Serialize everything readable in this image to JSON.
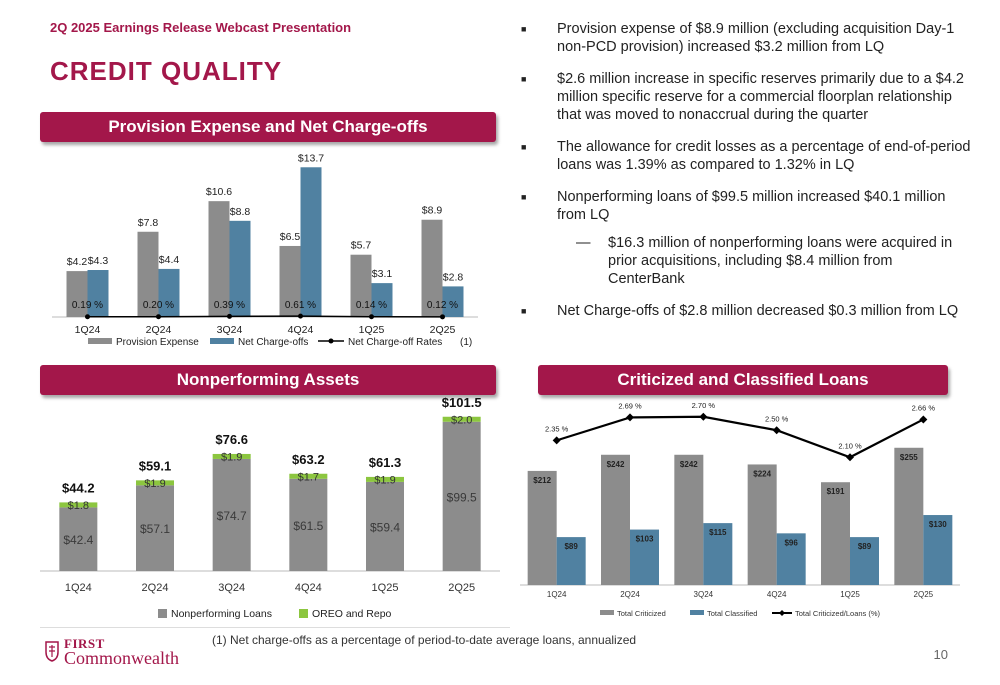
{
  "header": {
    "subtitle": "2Q 2025 Earnings Release Webcast Presentation",
    "title": "CREDIT QUALITY"
  },
  "banners": {
    "provision": "Provision Expense and Net Charge-offs",
    "npa": "Nonperforming Assets",
    "criticized": "Criticized and Classified Loans"
  },
  "bullets": [
    {
      "text": "Provision expense of $8.9 million (excluding acquisition Day-1 non-PCD provision) increased $3.2 million from LQ"
    },
    {
      "text": "$2.6 million increase in specific reserves primarily due to a $4.2 million specific reserve for a commercial floorplan relationship that was moved to nonaccrual during the quarter"
    },
    {
      "text": "The allowance for credit losses as a percentage of end-of-period loans was 1.39% as compared to 1.32% in LQ"
    },
    {
      "text": "Nonperforming loans of $99.5 million increased $40.1 million from LQ"
    },
    {
      "text": "$16.3 million of nonperforming loans were acquired in prior acquisitions, including $8.4 million from CenterBank",
      "sub": true
    },
    {
      "text": "Net Charge-offs of $2.8 million decreased $0.3 million from LQ"
    }
  ],
  "chart_data": [
    {
      "type": "bar",
      "categories": [
        "1Q24",
        "2Q24",
        "3Q24",
        "4Q24",
        "1Q25",
        "2Q25"
      ],
      "series": [
        {
          "name": "Provision Expense",
          "values": [
            4.2,
            7.8,
            10.6,
            6.5,
            5.7,
            8.9
          ],
          "labels": [
            "$4.2",
            "$7.8",
            "$10.6",
            "$6.5",
            "$5.7",
            "$8.9"
          ],
          "color": "#8c8c8c"
        },
        {
          "name": "Net Charge-offs",
          "values": [
            4.3,
            4.4,
            8.8,
            13.7,
            3.1,
            2.8
          ],
          "labels": [
            "$4.3",
            "$4.4",
            "$8.8",
            "$13.7",
            "$3.1",
            "$2.8"
          ],
          "color": "#5081a1"
        },
        {
          "name": "Net Charge-off Rates",
          "values": [
            0.19,
            0.2,
            0.39,
            0.61,
            0.14,
            0.12
          ],
          "labels": [
            "0.19 %",
            "0.20 %",
            "0.39 %",
            "0.61 %",
            "0.14 %",
            "0.12 %"
          ],
          "color": "#000000",
          "type": "line"
        }
      ],
      "legend_note": "(1)",
      "ylim": [
        0,
        14
      ],
      "legend": "bottom"
    },
    {
      "type": "bar",
      "stacked": true,
      "categories": [
        "1Q24",
        "2Q24",
        "3Q24",
        "4Q24",
        "1Q25",
        "2Q25"
      ],
      "series": [
        {
          "name": "Nonperforming Loans",
          "values": [
            42.4,
            57.1,
            74.7,
            61.5,
            59.4,
            99.5
          ],
          "labels": [
            "$42.4",
            "$57.1",
            "$74.7",
            "$61.5",
            "$59.4",
            "$99.5"
          ],
          "color": "#8c8c8c"
        },
        {
          "name": "OREO and Repo",
          "values": [
            1.8,
            1.9,
            1.9,
            1.7,
            1.9,
            2.0
          ],
          "labels": [
            "$1.8",
            "$1.9",
            "$1.9",
            "$1.7",
            "$1.9",
            "$2.0"
          ],
          "color": "#8cc63f"
        }
      ],
      "totals": [
        "$44.2",
        "$59.1",
        "$76.6",
        "$63.2",
        "$61.3",
        "$101.5"
      ],
      "total_values": [
        44.2,
        59.1,
        76.6,
        63.2,
        61.3,
        101.5
      ],
      "ylim": [
        0,
        102
      ],
      "legend": "bottom"
    },
    {
      "type": "bar",
      "categories": [
        "1Q24",
        "2Q24",
        "3Q24",
        "4Q24",
        "1Q25",
        "2Q25"
      ],
      "series": [
        {
          "name": "Total Criticized",
          "values": [
            212,
            242,
            242,
            224,
            191,
            255
          ],
          "labels": [
            "$212",
            "$242",
            "$242",
            "$224",
            "$191",
            "$255"
          ],
          "color": "#8c8c8c"
        },
        {
          "name": "Total Classified",
          "values": [
            89,
            103,
            115,
            96,
            89,
            130
          ],
          "labels": [
            "$89",
            "$103",
            "$115",
            "$96",
            "$89",
            "$130"
          ],
          "color": "#5081a1"
        },
        {
          "name": "Total Criticized/Loans (%)",
          "values": [
            2.35,
            2.69,
            2.7,
            2.5,
            2.1,
            2.66
          ],
          "labels": [
            "2.35 %",
            "2.69 %",
            "2.70 %",
            "2.50 %",
            "2.10 %",
            "2.66 %"
          ],
          "color": "#000000",
          "type": "line"
        }
      ],
      "ylim": [
        0,
        260
      ],
      "legend": "bottom"
    }
  ],
  "footnote": "(1)   Net charge-offs as a percentage of period-to-date average loans, annualized",
  "page_number": "10",
  "logo": {
    "line1": "FIRST",
    "line2": "Commonwealth"
  }
}
